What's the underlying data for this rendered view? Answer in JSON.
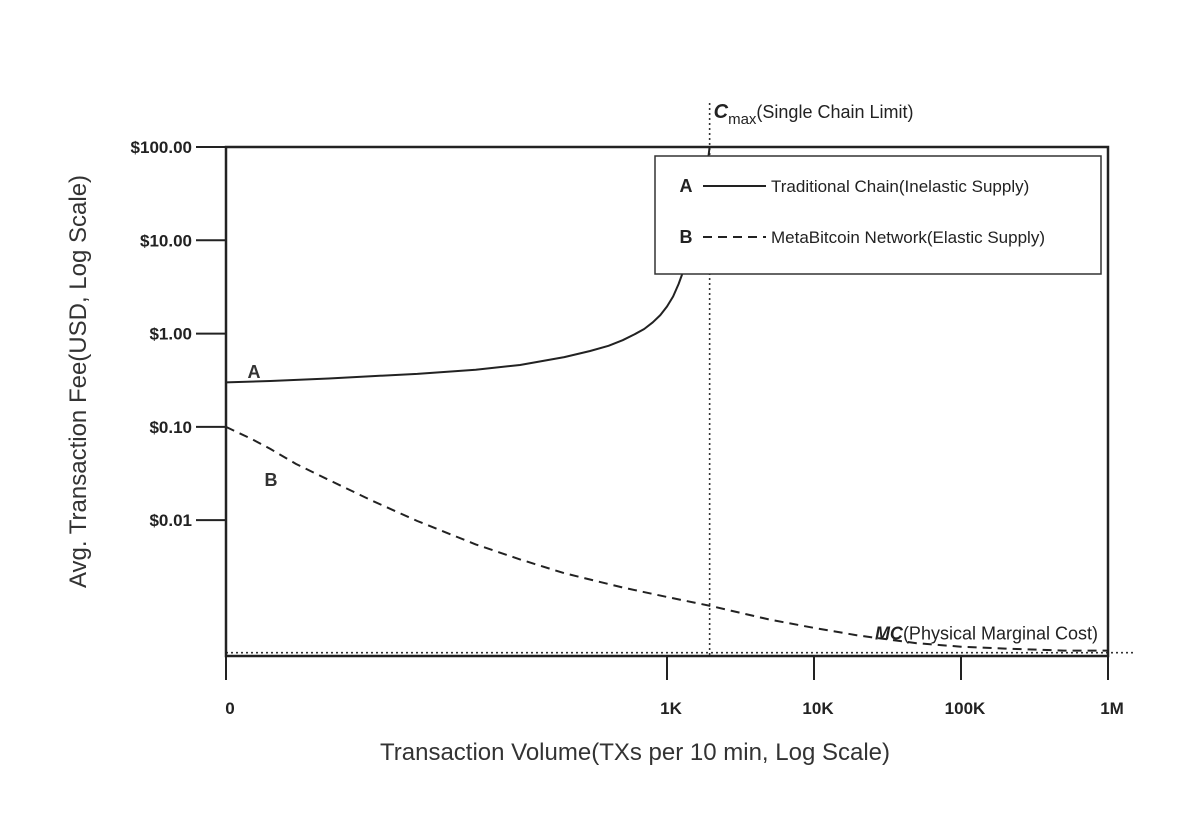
{
  "chart_data": {
    "type": "line",
    "xlabel": "Transaction Volume(TXs per 10 min, Log Scale)",
    "ylabel": "Avg. Transaction Fee(USD, Log Scale)",
    "x_scale": "log",
    "y_scale": "log",
    "xlim": [
      1,
      1000000
    ],
    "ylim": [
      0.00035,
      100
    ],
    "x_ticks": [
      {
        "value": 1,
        "label": "0"
      },
      {
        "value": 1000,
        "label": "1K"
      },
      {
        "value": 10000,
        "label": "10K"
      },
      {
        "value": 100000,
        "label": "100K"
      },
      {
        "value": 1000000,
        "label": "1M"
      }
    ],
    "y_ticks": [
      {
        "value": 100,
        "label": "$100.00"
      },
      {
        "value": 10,
        "label": "$10.00"
      },
      {
        "value": 1,
        "label": "$1.00"
      },
      {
        "value": 0.1,
        "label": "$0.10"
      },
      {
        "value": 0.01,
        "label": "$0.01"
      }
    ],
    "grid": false,
    "legend_position": "top-right",
    "series": [
      {
        "key": "A",
        "name": "Traditional Chain(Inelastic Supply)",
        "style": "solid",
        "color": "#222222",
        "x": [
          1,
          2,
          5,
          10,
          20,
          50,
          100,
          200,
          300,
          400,
          500,
          600,
          700,
          800,
          900,
          1000,
          1100,
          1200,
          1300,
          1400,
          1500,
          1600,
          1700,
          1800,
          1900,
          1950
        ],
        "y": [
          0.3,
          0.31,
          0.33,
          0.35,
          0.37,
          0.41,
          0.46,
          0.56,
          0.65,
          0.74,
          0.85,
          0.98,
          1.12,
          1.32,
          1.58,
          1.95,
          2.5,
          3.4,
          4.8,
          7.0,
          10.5,
          16,
          26,
          42,
          72,
          100
        ]
      },
      {
        "key": "B",
        "name": "MetaBitcoin Network(Elastic Supply)",
        "style": "dashed",
        "color": "#222222",
        "x": [
          1,
          1.5,
          2,
          3,
          5,
          10,
          20,
          50,
          100,
          200,
          500,
          1000,
          2000,
          5000,
          10000,
          20000,
          50000,
          100000,
          200000,
          500000,
          1000000
        ],
        "y": [
          0.1,
          0.074,
          0.058,
          0.04,
          0.027,
          0.016,
          0.0098,
          0.0055,
          0.0038,
          0.0027,
          0.0019,
          0.0015,
          0.0012,
          0.00086,
          0.0007,
          0.00058,
          0.00048,
          0.00044,
          0.00042,
          0.0004,
          0.0004
        ]
      }
    ],
    "annotations": [
      {
        "kind": "vline",
        "x": 1950,
        "style": "dotted",
        "symbol": "C",
        "subscript": "max",
        "text": "(Single Chain Limit)"
      },
      {
        "kind": "hline",
        "y": 0.00038,
        "style": "dotted",
        "symbol": "MC",
        "text": "(Physical Marginal Cost)"
      }
    ]
  }
}
